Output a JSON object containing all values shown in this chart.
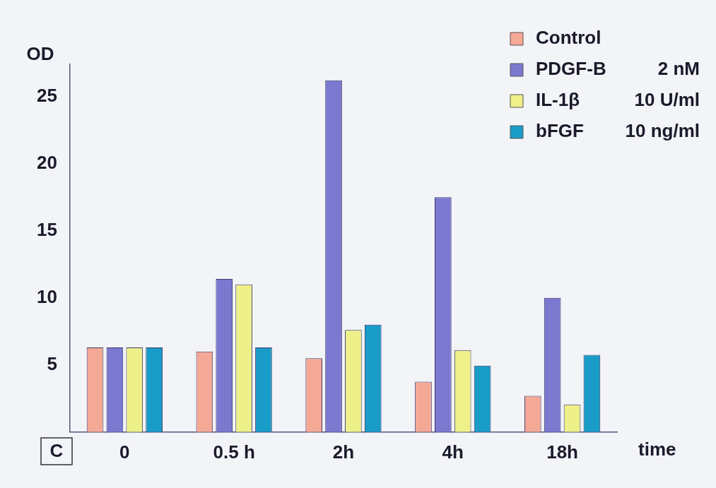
{
  "chart_data": {
    "type": "bar",
    "ylabel": "OD",
    "xlabel": "time",
    "categories": [
      "0",
      "0.5 h",
      "2h",
      "4h",
      "18h"
    ],
    "series": [
      {
        "name": "Control",
        "color": "#f4a896",
        "values": [
          6.3,
          6.0,
          5.5,
          3.75,
          2.7
        ]
      },
      {
        "name": "PDGF-B",
        "color": "#7b78d0",
        "values": [
          6.3,
          11.4,
          26.2,
          17.5,
          10.0
        ]
      },
      {
        "name": "IL-1β",
        "color": "#eef08a",
        "values": [
          6.3,
          11.0,
          7.6,
          6.1,
          2.05
        ]
      },
      {
        "name": "bFGF",
        "color": "#1a9cc8",
        "values": [
          6.3,
          6.3,
          8.0,
          4.95,
          5.75
        ]
      }
    ],
    "ylim": [
      0,
      27.4
    ],
    "yticks": [
      5,
      10,
      15,
      20,
      25
    ],
    "grid": false,
    "legend": "top right",
    "annotations": [
      "2 nM",
      "10 U/ml",
      "10 ng/ml",
      "C"
    ]
  }
}
